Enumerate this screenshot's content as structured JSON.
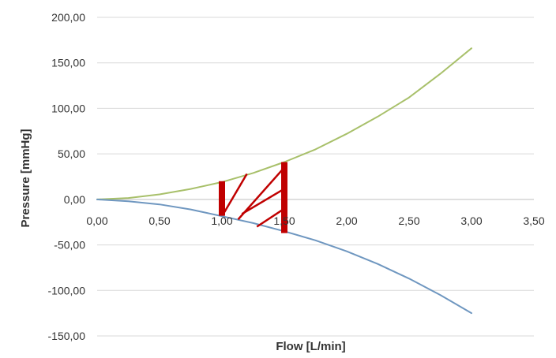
{
  "chart_data": {
    "type": "line",
    "title": "",
    "xlabel": "Flow [L/min]",
    "ylabel": "Pressure [mmHg]",
    "xlim": [
      0,
      3.5
    ],
    "ylim": [
      -150,
      200
    ],
    "x_ticks": [
      "0,00",
      "0,50",
      "1,00",
      "1,50",
      "2,00",
      "2,50",
      "3,00",
      "3,50"
    ],
    "y_ticks": [
      "200,00",
      "150,00",
      "100,00",
      "50,00",
      "0,00",
      "-50,00",
      "-100,00",
      "-150,00"
    ],
    "grid": true,
    "legend": "none",
    "series": [
      {
        "color": "#a8c06a",
        "x": [
          0,
          0.25,
          0.5,
          0.75,
          1.0,
          1.25,
          1.5,
          1.75,
          2.0,
          2.25,
          2.5,
          2.75,
          3.0
        ],
        "y": [
          0,
          1.5,
          5.5,
          11.5,
          19,
          29,
          41,
          55,
          72,
          91,
          112,
          138,
          166
        ]
      },
      {
        "color": "#6f97c0",
        "x": [
          0,
          0.25,
          0.5,
          0.75,
          1.0,
          1.25,
          1.5,
          1.75,
          2.0,
          2.25,
          2.5,
          2.75,
          3.0
        ],
        "y": [
          0,
          -2,
          -5.5,
          -11,
          -18.5,
          -26,
          -35,
          -45,
          -57,
          -71,
          -87,
          -105,
          -125
        ]
      }
    ],
    "annotation": {
      "type": "hatched-region",
      "color": "#c00000",
      "x_range": [
        1.0,
        1.5
      ],
      "y_range": [
        -17,
        41
      ]
    }
  }
}
